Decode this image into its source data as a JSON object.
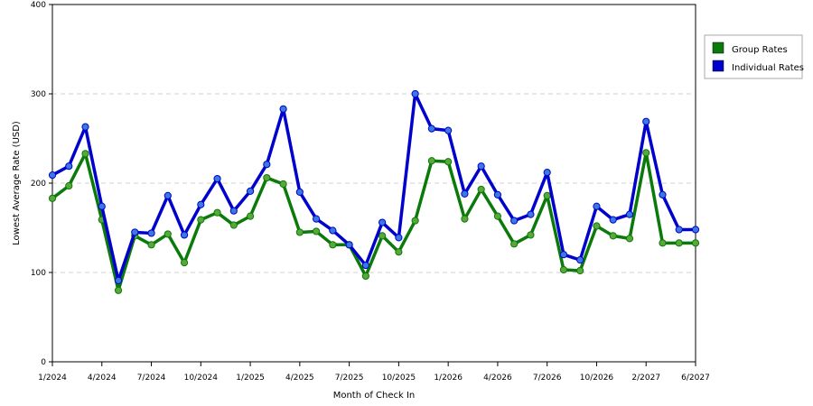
{
  "chart_data": {
    "type": "line",
    "xlabel": "Month of Check In",
    "ylabel": "Lowest Average Rate (USD)",
    "ylim": [
      0,
      400
    ],
    "yticks": [
      0,
      100,
      200,
      300,
      400
    ],
    "grid": true,
    "legend_position": "top-right",
    "x": [
      "1/2024",
      "2/2024",
      "3/2024",
      "4/2024",
      "5/2024",
      "6/2024",
      "7/2024",
      "8/2024",
      "9/2024",
      "10/2024",
      "11/2024",
      "12/2024",
      "1/2025",
      "2/2025",
      "3/2025",
      "4/2025",
      "5/2025",
      "6/2025",
      "7/2025",
      "8/2025",
      "9/2025",
      "10/2025",
      "11/2025",
      "12/2025",
      "1/2026",
      "2/2026",
      "3/2026",
      "4/2026",
      "5/2026",
      "6/2026",
      "7/2026",
      "8/2026",
      "9/2026",
      "10/2026",
      "11/2026",
      "12/2026",
      "2/2027",
      "3/2027",
      "4/2027",
      "6/2027"
    ],
    "xtick_labels": [
      "1/2024",
      "4/2024",
      "7/2024",
      "10/2024",
      "1/2025",
      "4/2025",
      "7/2025",
      "10/2025",
      "1/2026",
      "4/2026",
      "7/2026",
      "10/2026",
      "2/2027",
      "6/2027"
    ],
    "series": [
      {
        "name": "Group Rates",
        "color": "#0a7a0a",
        "marker_color": "#5aa83a",
        "values": [
          183,
          197,
          233,
          159,
          80,
          141,
          131,
          143,
          111,
          159,
          167,
          153,
          163,
          206,
          199,
          145,
          146,
          131,
          131,
          96,
          141,
          123,
          158,
          225,
          224,
          160,
          193,
          163,
          132,
          142,
          186,
          103,
          102,
          152,
          141,
          138,
          234,
          133,
          133,
          133
        ]
      },
      {
        "name": "Individual Rates",
        "color": "#0000cc",
        "marker_color": "#3a7ae0",
        "values": [
          209,
          219,
          263,
          174,
          91,
          145,
          144,
          186,
          142,
          176,
          205,
          169,
          191,
          221,
          283,
          190,
          160,
          147,
          131,
          108,
          156,
          139,
          300,
          261,
          259,
          188,
          219,
          187,
          158,
          165,
          212,
          120,
          114,
          174,
          159,
          165,
          269,
          187,
          148,
          148
        ]
      }
    ]
  }
}
